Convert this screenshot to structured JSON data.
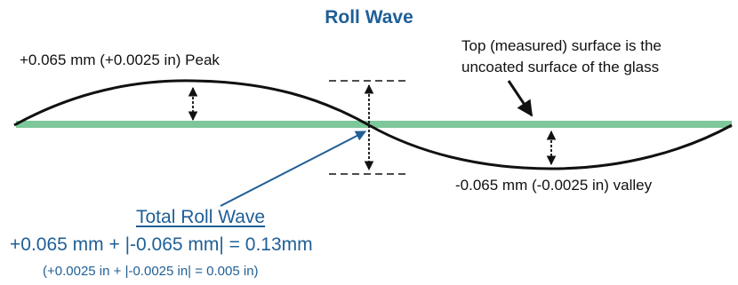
{
  "title": "Roll Wave",
  "peak_label": "+0.065 mm (+0.0025 in) Peak",
  "top_note": [
    "Top (measured) surface is the",
    "uncoated surface of the glass"
  ],
  "valley_label": "-0.065 mm (-0.0025 in) valley",
  "total_label": "Total Roll Wave",
  "total_equation_mm": "+0.065 mm + |-0.065 mm| = 0.13mm",
  "total_equation_in": "(+0.0025 in + |-0.0025 in| = 0.005 in)",
  "colors": {
    "title_blue": "#1f5f96",
    "glass_green": "#7dc79a",
    "line": "#111111"
  }
}
